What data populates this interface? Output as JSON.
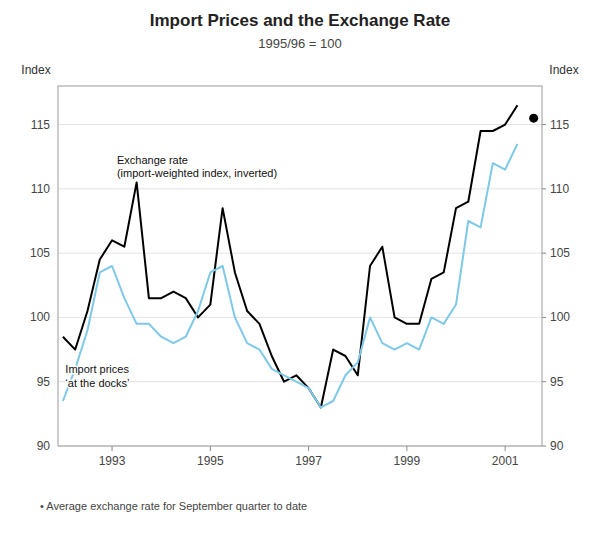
{
  "chart_data": {
    "type": "line",
    "title": "Import Prices and the Exchange Rate",
    "subtitle": "1995/96 = 100",
    "ylabel": "Index",
    "y2label": "Index",
    "xlim": [
      1991.9,
      2001.75
    ],
    "xticks": [
      1993,
      1995,
      1997,
      1999,
      2001
    ],
    "ylim": [
      90,
      118
    ],
    "yticks": [
      90,
      95,
      100,
      105,
      110,
      115
    ],
    "y2lim": [
      90,
      118
    ],
    "y2ticks": [
      90,
      95,
      100,
      105,
      110,
      115
    ],
    "grid": true,
    "series": [
      {
        "type": "line",
        "color": "#000000",
        "x": [
          1992.0,
          1992.25,
          1992.5,
          1992.75,
          1993.0,
          1993.25,
          1993.5,
          1993.75,
          1994.0,
          1994.25,
          1994.5,
          1994.75,
          1995.0,
          1995.25,
          1995.5,
          1995.75,
          1996.0,
          1996.25,
          1996.5,
          1996.75,
          1997.0,
          1997.25,
          1997.5,
          1997.75,
          1998.0,
          1998.25,
          1998.5,
          1998.75,
          1999.0,
          1999.25,
          1999.5,
          1999.75,
          2000.0,
          2000.25,
          2000.5,
          2000.75,
          2001.0,
          2001.25
        ],
        "values": [
          98.5,
          97.5,
          100.5,
          104.5,
          106.0,
          105.5,
          110.5,
          101.5,
          101.5,
          102.0,
          101.5,
          100.0,
          101.0,
          108.5,
          103.5,
          100.5,
          99.5,
          97.0,
          95.0,
          95.5,
          94.5,
          93.0,
          97.5,
          97.0,
          95.5,
          104.0,
          105.5,
          100.0,
          99.5,
          99.5,
          103.0,
          103.5,
          108.5,
          109.0,
          114.5,
          114.5,
          115.0,
          116.5
        ]
      },
      {
        "type": "line",
        "color": "#7ec8e8",
        "x": [
          1992.0,
          1992.25,
          1992.5,
          1992.75,
          1993.0,
          1993.25,
          1993.5,
          1993.75,
          1994.0,
          1994.25,
          1994.5,
          1994.75,
          1995.0,
          1995.25,
          1995.5,
          1995.75,
          1996.0,
          1996.25,
          1996.5,
          1996.75,
          1997.0,
          1997.25,
          1997.5,
          1997.75,
          1998.0,
          1998.25,
          1998.5,
          1998.75,
          1999.0,
          1999.25,
          1999.5,
          1999.75,
          2000.0,
          2000.25,
          2000.5,
          2000.75,
          2001.0,
          2001.25
        ],
        "values": [
          93.5,
          96.0,
          99.0,
          103.5,
          104.0,
          101.5,
          99.5,
          99.5,
          98.5,
          98.0,
          98.5,
          100.5,
          103.5,
          104.0,
          100.0,
          98.0,
          97.5,
          96.0,
          95.5,
          95.0,
          94.5,
          93.0,
          93.5,
          95.5,
          96.5,
          100.0,
          98.0,
          97.5,
          98.0,
          97.5,
          100.0,
          99.5,
          101.0,
          107.5,
          107.0,
          112.0,
          111.5,
          113.5
        ]
      },
      {
        "type": "scatter",
        "marker": "circle",
        "color": "#000000",
        "x": [
          2001.58
        ],
        "values": [
          115.5
        ]
      }
    ],
    "annotations": [
      {
        "text": "Exchange rate\n(import-weighted index, inverted)",
        "x": 1993.1,
        "y": 112.8
      },
      {
        "text": "Import prices\n‘at the docks’",
        "x": 1992.05,
        "y": 96.5
      }
    ],
    "footnote": "•  Average exchange rate for September quarter to date"
  }
}
